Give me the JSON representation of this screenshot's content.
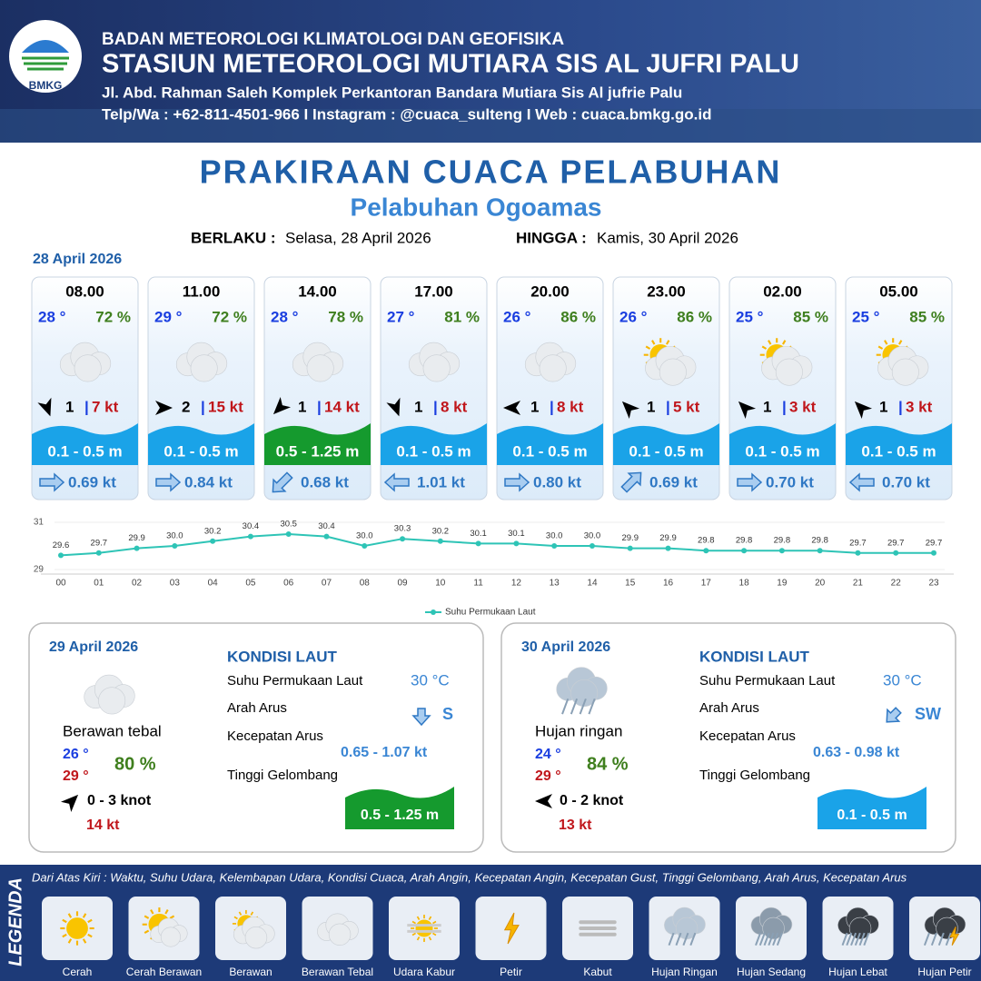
{
  "header": {
    "logo": "BMKG",
    "agency": "BADAN METEOROLOGI KLIMATOLOGI DAN GEOFISIKA",
    "station": "STASIUN METEOROLOGI MUTIARA SIS AL JUFRI PALU",
    "address": "Jl. Abd. Rahman Saleh Komplek Perkantoran Bandara Mutiara Sis Al jufrie Palu",
    "contact": "Telp/Wa : +62-811-4501-966  I  Instagram : @cuaca_sulteng  I  Web : cuaca.bmkg.go.id"
  },
  "title": "PRAKIRAAN CUACA PELABUHAN",
  "subtitle": "Pelabuhan Ogoamas",
  "validity": {
    "from_label": "BERLAKU :",
    "from": "Selasa, 28 April 2026",
    "to_label": "HINGGA :",
    "to": "Kamis, 30 April 2026"
  },
  "day1": {
    "date": "28 April 2026",
    "forecasts": [
      {
        "time": "08.00",
        "temp": "28 °",
        "humidity": "72 %",
        "wind": "1",
        "gust": "7 kt",
        "wave": "0.1 - 0.5 m",
        "current": "0.69 kt"
      },
      {
        "time": "11.00",
        "temp": "29 °",
        "humidity": "72 %",
        "wind": "2",
        "gust": "15 kt",
        "wave": "0.1 - 0.5 m",
        "current": "0.84 kt"
      },
      {
        "time": "14.00",
        "temp": "28 °",
        "humidity": "78 %",
        "wind": "1",
        "gust": "14 kt",
        "wave": "0.5 - 1.25 m",
        "current": "0.68 kt"
      },
      {
        "time": "17.00",
        "temp": "27 °",
        "humidity": "81 %",
        "wind": "1",
        "gust": "8 kt",
        "wave": "0.1 - 0.5 m",
        "current": "1.01 kt"
      },
      {
        "time": "20.00",
        "temp": "26 °",
        "humidity": "86 %",
        "wind": "1",
        "gust": "8 kt",
        "wave": "0.1 - 0.5 m",
        "current": "0.80 kt"
      },
      {
        "time": "23.00",
        "temp": "26 °",
        "humidity": "86 %",
        "wind": "1",
        "gust": "5 kt",
        "wave": "0.1 - 0.5 m",
        "current": "0.69 kt"
      },
      {
        "time": "02.00",
        "temp": "25 °",
        "humidity": "85 %",
        "wind": "1",
        "gust": "3 kt",
        "wave": "0.1 - 0.5 m",
        "current": "0.70 kt"
      },
      {
        "time": "05.00",
        "temp": "25 °",
        "humidity": "85 %",
        "wind": "1",
        "gust": "3 kt",
        "wave": "0.1 - 0.5 m",
        "current": "0.70 kt"
      }
    ]
  },
  "sst_chart": {
    "type": "line",
    "categories": [
      "00",
      "01",
      "02",
      "03",
      "04",
      "05",
      "06",
      "07",
      "08",
      "09",
      "10",
      "11",
      "12",
      "13",
      "14",
      "15",
      "16",
      "17",
      "18",
      "19",
      "20",
      "21",
      "22",
      "23"
    ],
    "series": [
      {
        "name": "Suhu Permukaan Laut",
        "color": "#2ec4b6",
        "values": [
          29.6,
          29.7,
          29.9,
          30.0,
          30.2,
          30.4,
          30.5,
          30.4,
          30.0,
          30.3,
          30.2,
          30.1,
          30.1,
          30.0,
          30.0,
          29.9,
          29.9,
          29.8,
          29.8,
          29.8,
          29.8,
          29.7,
          29.7,
          29.7
        ],
        "value_labels": [
          "29.6",
          "29.7",
          "29.9",
          "30.0",
          "30.2",
          "30.4",
          "30.5",
          "30.4",
          "30.0",
          "30.3",
          "30.2",
          "30.1",
          "30.1",
          "30.0",
          "30.0",
          "29.9",
          "29.9",
          "29.8",
          "29.8",
          "29.8",
          "29.8",
          "29.7",
          "29.7",
          "29.7"
        ]
      }
    ],
    "ylim": [
      29,
      31
    ],
    "yticks": [
      29,
      31
    ]
  },
  "days": [
    {
      "date": "29 April 2026",
      "condition": "Berawan tebal",
      "temp_min": "26 °",
      "temp_max": "29 °",
      "humidity": "80 %",
      "wind": "0  - 3 knot",
      "gust": "14 kt",
      "sea_title": "KONDISI LAUT",
      "sst_label": "Suhu Permukaan Laut",
      "sst": "30 °C",
      "current_dir_label": "Arah Arus",
      "current_dir": "S",
      "current_speed_label": "Kecepatan Arus",
      "current_speed": "0.65  - 1.07 kt",
      "wave_label": "Tinggi Gelombang",
      "wave": "0.5 - 1.25 m"
    },
    {
      "date": "30 April 2026",
      "condition": "Hujan ringan",
      "temp_min": "24 °",
      "temp_max": "29 °",
      "humidity": "84 %",
      "wind": "0  - 2 knot",
      "gust": "13 kt",
      "sea_title": "KONDISI LAUT",
      "sst_label": "Suhu Permukaan Laut",
      "sst": "30 °C",
      "current_dir_label": "Arah Arus",
      "current_dir": "SW",
      "current_speed_label": "Kecepatan Arus",
      "current_speed": "0.63  - 0.98 kt",
      "wave_label": "Tinggi Gelombang",
      "wave": "0.1 - 0.5 m"
    }
  ],
  "legend": {
    "title": "LEGENDA",
    "note": "Dari Atas Kiri : Waktu, Suhu Udara, Kelembapan Udara, Kondisi Cuaca, Arah Angin, Kecepatan Angin, Kecepatan Gust, Tinggi Gelombang, Arah Arus, Kecepatan Arus",
    "items": [
      "Cerah",
      "Cerah Berawan",
      "Berawan",
      "Berawan Tebal",
      "Udara Kabur",
      "Petir",
      "Kabut",
      "Hujan Ringan",
      "Hujan Sedang",
      "Hujan Lebat",
      "Hujan Petir"
    ]
  }
}
